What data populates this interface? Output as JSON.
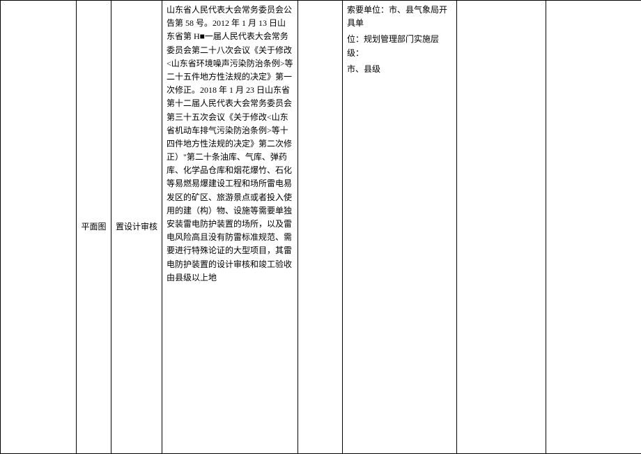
{
  "table": {
    "row": {
      "col2": "平面图",
      "col3": "置设计审核",
      "col4": "山东省人民代表大会常务委员会公告第 58 号。2012 年 1 月 13 日山东省第 H■一届人民代表大会常务委员会第二十八次会议《关于修改<山东省环境噪声污染防治条例>等二十五件地方性法规的决定》第一次修正。2018 年 1 月 23 日山东省第十二届人民代表大会常务委员会第三十五次会议《关于修改<山东省机动车排气污染防治条例>等十四件地方性法规的决定》第二次修正）\"第二十条油库、气库、弹药库、化学品仓库和烟花爆竹、石化等易燃易爆建设工程和场所雷电易发区的矿区、旅游景点或者投入使用的建（构）物、设施等需要单独安装雷电防护装置的场所，以及雷电风险高且没有防雷标准规范、需要进行特殊论证的大型项目，其雷电防护装置的设计审核和竣工验收由县级以上地",
      "col6_line1": "索要单位：市、县气象局开具单",
      "col6_line2": "位：规划管理部门实施层级：",
      "col6_line3": "市、县级"
    }
  },
  "style": {
    "background_color": "#ffffff",
    "border_color": "#000000",
    "font_size": 12,
    "text_color": "#000000",
    "line_height": 1.6
  }
}
